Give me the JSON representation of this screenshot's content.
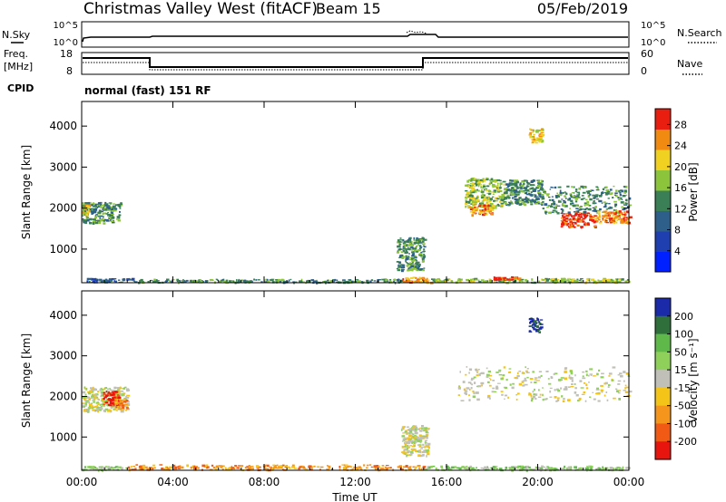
{
  "title": {
    "site": "Christmas Valley West (fitACF)",
    "beam": "Beam 15",
    "date": "05/Feb/2019"
  },
  "header_panels": {
    "nsky_label": "N.Sky",
    "nsearch_label": "N.Search",
    "noise_ticks_left": [
      "10^5",
      "10^0"
    ],
    "noise_ticks_right": [
      "10^5",
      "10^0"
    ],
    "freq_label": "Freq.",
    "freq_unit": "[MHz]",
    "freq_ticks": [
      "18",
      "8"
    ],
    "nave_label": "Nave",
    "nave_ticks": [
      "60",
      "0"
    ],
    "cpid_label": "CPID",
    "cpid_text": "normal (fast) 151 RF"
  },
  "chart_data": [
    {
      "type": "heatmap",
      "title": "",
      "xlabel": "",
      "ylabel": "Slant Range [km]",
      "x_ticks": [
        "00:00",
        "04:00",
        "08:00",
        "12:00",
        "16:00",
        "20:00",
        "00:00"
      ],
      "xlim_hours": [
        0,
        24
      ],
      "y_ticks": [
        1000,
        2000,
        3000,
        4000
      ],
      "ylim": [
        180,
        4600
      ],
      "colorbar": {
        "label": "Power [dB]",
        "ticks": [
          4,
          8,
          12,
          16,
          20,
          24,
          28
        ],
        "range": [
          0,
          31
        ],
        "colors": [
          "#0020ff",
          "#1f3fb0",
          "#2e5f8a",
          "#3a7f55",
          "#8cc43c",
          "#f0d020",
          "#f08a10",
          "#ea1e10"
        ]
      },
      "regions": [
        {
          "x": [
            0.0,
            1.7
          ],
          "y": [
            1650,
            2150
          ],
          "level": 3
        },
        {
          "x": [
            0.0,
            0.3
          ],
          "y": [
            1850,
            2100
          ],
          "level": 5
        },
        {
          "x": [
            0.2,
            2.2
          ],
          "y": [
            200,
            300
          ],
          "level": 2
        },
        {
          "x": [
            2.2,
            14.0
          ],
          "y": [
            200,
            280
          ],
          "level": 3
        },
        {
          "x": [
            14.0,
            15.3
          ],
          "y": [
            200,
            330
          ],
          "level": 6
        },
        {
          "x": [
            13.8,
            15.0
          ],
          "y": [
            500,
            1300
          ],
          "level": 3
        },
        {
          "x": [
            15.3,
            24.0
          ],
          "y": [
            200,
            300
          ],
          "level": 4
        },
        {
          "x": [
            18.0,
            19.2
          ],
          "y": [
            260,
            340
          ],
          "level": 7
        },
        {
          "x": [
            16.8,
            18.5
          ],
          "y": [
            2000,
            2750
          ],
          "level": 4
        },
        {
          "x": [
            17.0,
            18.0
          ],
          "y": [
            1850,
            2100
          ],
          "level": 6
        },
        {
          "x": [
            18.5,
            20.2
          ],
          "y": [
            2100,
            2700
          ],
          "level": 3
        },
        {
          "x": [
            20.2,
            24.0
          ],
          "y": [
            1900,
            2550
          ],
          "level": 3
        },
        {
          "x": [
            21.0,
            22.5
          ],
          "y": [
            1550,
            1900
          ],
          "level": 7
        },
        {
          "x": [
            22.5,
            24.0
          ],
          "y": [
            1650,
            1950
          ],
          "level": 6
        },
        {
          "x": [
            19.6,
            20.2
          ],
          "y": [
            3600,
            3950
          ],
          "level": 5
        }
      ]
    },
    {
      "type": "heatmap",
      "title": "",
      "xlabel": "Time UT",
      "ylabel": "Slant Range [km]",
      "x_ticks": [
        "00:00",
        "04:00",
        "08:00",
        "12:00",
        "16:00",
        "20:00",
        "00:00"
      ],
      "xlim_hours": [
        0,
        24
      ],
      "y_ticks": [
        1000,
        2000,
        3000,
        4000
      ],
      "ylim": [
        180,
        4600
      ],
      "colorbar": {
        "label": "Velocity [m s⁻¹]",
        "ticks": [
          "200",
          "100",
          "50",
          "15",
          "-15",
          "-50",
          "-100",
          "-200"
        ],
        "colors": [
          "#1a2aa8",
          "#2e6f3c",
          "#5fb84a",
          "#8ed05a",
          "#c0c0b8",
          "#f4c418",
          "#f6951c",
          "#f05a14",
          "#e8140e"
        ]
      },
      "regions": [
        {
          "x": [
            0.0,
            2.0
          ],
          "y": [
            1650,
            2250
          ],
          "level": 4
        },
        {
          "x": [
            0.9,
            1.6
          ],
          "y": [
            1800,
            2150
          ],
          "level": 8
        },
        {
          "x": [
            1.4,
            2.0
          ],
          "y": [
            1700,
            1950
          ],
          "level": 6
        },
        {
          "x": [
            0.0,
            2.0
          ],
          "y": [
            200,
            300
          ],
          "level": 3
        },
        {
          "x": [
            2.0,
            15.0
          ],
          "y": [
            200,
            330
          ],
          "level": 6
        },
        {
          "x": [
            14.0,
            15.2
          ],
          "y": [
            550,
            1300
          ],
          "level": 4
        },
        {
          "x": [
            15.0,
            24.0
          ],
          "y": [
            200,
            300
          ],
          "level": 3
        },
        {
          "x": [
            16.5,
            24.0
          ],
          "y": [
            1900,
            2750
          ],
          "level": 4
        },
        {
          "x": [
            19.6,
            20.1
          ],
          "y": [
            3600,
            3950
          ],
          "level": 0
        }
      ]
    }
  ]
}
